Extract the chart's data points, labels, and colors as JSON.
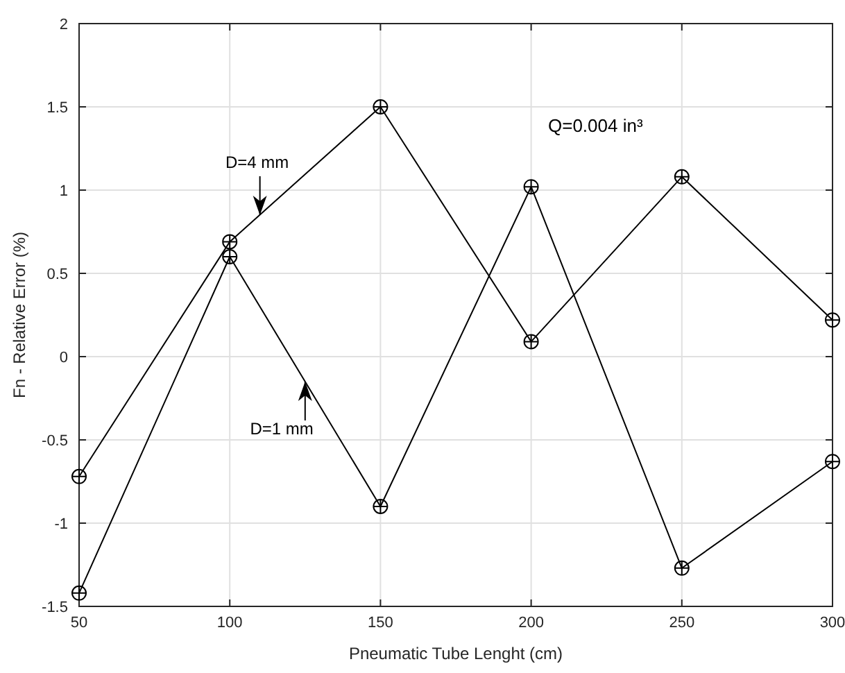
{
  "chart_data": {
    "type": "line",
    "xlabel": "Pneumatic Tube Lenght (cm)",
    "ylabel": "Fn - Relative Error (%)",
    "x": [
      50,
      100,
      150,
      200,
      250,
      300
    ],
    "series": [
      {
        "color": "#000000",
        "values": [
          -0.72,
          0.69,
          1.5,
          0.09,
          1.08,
          0.22
        ]
      },
      {
        "color": "#000000",
        "values": [
          -1.42,
          0.6,
          -0.9,
          1.02,
          -1.27,
          -0.63
        ]
      }
    ],
    "xlim": [
      50,
      300
    ],
    "xticks": [
      50,
      100,
      150,
      200,
      250,
      300
    ],
    "ylim": [
      -1.5,
      2
    ],
    "yticks": [
      -1.5,
      -1,
      -0.5,
      0,
      0.5,
      1,
      1.5,
      2
    ],
    "annotations": [
      "Q=0.004 in³",
      {
        "text": "D=4 mm",
        "x": 110,
        "y": 0.85
      },
      {
        "text": "D=1 mm",
        "x": 125,
        "y": -0.15
      }
    ],
    "grid": true,
    "marker": "circle",
    "line_style": "solid"
  }
}
